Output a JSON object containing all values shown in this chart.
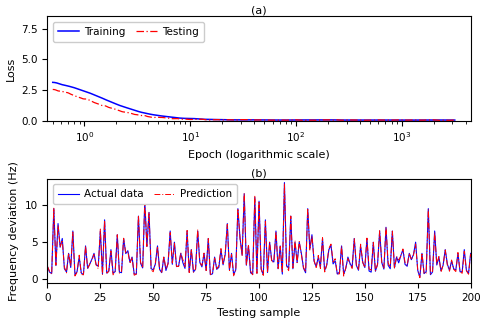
{
  "title_a": "(a)",
  "title_b": "(b)",
  "loss_xlabel": "Epoch (logarithmic scale)",
  "loss_ylabel": "Loss",
  "freq_xlabel": "Testing sample",
  "freq_ylabel": "Frequency deviation (Hz)",
  "loss_ylim": [
    0,
    8.5
  ],
  "loss_yticks": [
    0.0,
    2.5,
    5.0,
    7.5
  ],
  "loss_xlim_log": [
    -0.35,
    3.65
  ],
  "freq_ylim": [
    -0.5,
    13.5
  ],
  "freq_yticks": [
    0,
    5,
    10
  ],
  "freq_xlim": [
    0,
    200
  ],
  "freq_xticks": [
    0,
    25,
    50,
    75,
    100,
    125,
    150,
    175,
    200
  ],
  "train_color": "#0000ff",
  "test_color": "#ff0000",
  "actual_color": "#0000ff",
  "pred_color": "#ff0000",
  "legend_fontsize": 7.5,
  "label_fontsize": 8,
  "tick_fontsize": 7.5,
  "figsize": [
    4.86,
    3.24
  ],
  "dpi": 100
}
